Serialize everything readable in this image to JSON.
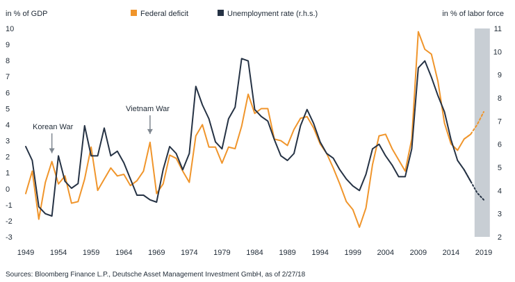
{
  "chart_data": {
    "type": "line",
    "title": "",
    "left_axis_label": "in % of GDP",
    "right_axis_label": "in % of labor force",
    "x_range": [
      1949,
      2019
    ],
    "ylim_left": [
      -3,
      10
    ],
    "ylim_right": [
      2,
      11
    ],
    "left_ticks": [
      "10",
      "9",
      "8",
      "7",
      "6",
      "5",
      "4",
      "3",
      "2",
      "1",
      "0",
      "-1",
      "-2",
      "-3"
    ],
    "right_ticks": [
      "11",
      "10",
      "9",
      "8",
      "7",
      "6",
      "5",
      "4",
      "3",
      "2"
    ],
    "x_ticks": [
      "1949",
      "1954",
      "1959",
      "1964",
      "1969",
      "1974",
      "1979",
      "1984",
      "1989",
      "1994",
      "1999",
      "2004",
      "2009",
      "2014",
      "2019"
    ],
    "forecast_start": 2018,
    "forecast_end": 2019,
    "series": [
      {
        "name": "Federal deficit",
        "axis": "left",
        "color": "#f0952b",
        "forecast_style": "dashed",
        "points": [
          [
            1949,
            -0.3
          ],
          [
            1950,
            1.1
          ],
          [
            1951,
            -1.9
          ],
          [
            1952,
            0.4
          ],
          [
            1953,
            1.7
          ],
          [
            1954,
            0.3
          ],
          [
            1955,
            0.8
          ],
          [
            1956,
            -0.9
          ],
          [
            1957,
            -0.8
          ],
          [
            1958,
            0.6
          ],
          [
            1959,
            2.6
          ],
          [
            1960,
            -0.1
          ],
          [
            1961,
            0.6
          ],
          [
            1962,
            1.3
          ],
          [
            1963,
            0.8
          ],
          [
            1964,
            0.9
          ],
          [
            1965,
            0.2
          ],
          [
            1966,
            0.5
          ],
          [
            1967,
            1.1
          ],
          [
            1968,
            2.9
          ],
          [
            1969,
            -0.3
          ],
          [
            1970,
            0.3
          ],
          [
            1971,
            2.1
          ],
          [
            1972,
            1.9
          ],
          [
            1973,
            1.1
          ],
          [
            1974,
            0.4
          ],
          [
            1975,
            3.3
          ],
          [
            1976,
            4.0
          ],
          [
            1977,
            2.6
          ],
          [
            1978,
            2.6
          ],
          [
            1979,
            1.6
          ],
          [
            1980,
            2.6
          ],
          [
            1981,
            2.5
          ],
          [
            1982,
            3.9
          ],
          [
            1983,
            5.9
          ],
          [
            1984,
            4.7
          ],
          [
            1985,
            5.0
          ],
          [
            1986,
            5.0
          ],
          [
            1987,
            3.1
          ],
          [
            1988,
            3.0
          ],
          [
            1989,
            2.7
          ],
          [
            1990,
            3.7
          ],
          [
            1991,
            4.4
          ],
          [
            1992,
            4.5
          ],
          [
            1993,
            3.8
          ],
          [
            1994,
            2.8
          ],
          [
            1995,
            2.2
          ],
          [
            1996,
            1.3
          ],
          [
            1997,
            0.3
          ],
          [
            1998,
            -0.8
          ],
          [
            1999,
            -1.3
          ],
          [
            2000,
            -2.4
          ],
          [
            2001,
            -1.2
          ],
          [
            2002,
            1.5
          ],
          [
            2003,
            3.3
          ],
          [
            2004,
            3.4
          ],
          [
            2005,
            2.5
          ],
          [
            2006,
            1.8
          ],
          [
            2007,
            1.1
          ],
          [
            2008,
            3.1
          ],
          [
            2009,
            9.8
          ],
          [
            2010,
            8.7
          ],
          [
            2011,
            8.4
          ],
          [
            2012,
            6.7
          ],
          [
            2013,
            4.1
          ],
          [
            2014,
            2.8
          ],
          [
            2015,
            2.4
          ],
          [
            2016,
            3.1
          ],
          [
            2017,
            3.4
          ],
          [
            2018,
            4.0
          ],
          [
            2019,
            4.8
          ]
        ]
      },
      {
        "name": "Unemployment rate (r.h.s.)",
        "axis": "right",
        "color": "#253244",
        "forecast_style": "dotted",
        "points": [
          [
            1949,
            5.9
          ],
          [
            1950,
            5.3
          ],
          [
            1951,
            3.3
          ],
          [
            1952,
            3.0
          ],
          [
            1953,
            2.9
          ],
          [
            1954,
            5.5
          ],
          [
            1955,
            4.4
          ],
          [
            1956,
            4.1
          ],
          [
            1957,
            4.3
          ],
          [
            1958,
            6.8
          ],
          [
            1959,
            5.5
          ],
          [
            1960,
            5.5
          ],
          [
            1961,
            6.7
          ],
          [
            1962,
            5.5
          ],
          [
            1963,
            5.7
          ],
          [
            1964,
            5.2
          ],
          [
            1965,
            4.5
          ],
          [
            1966,
            3.8
          ],
          [
            1967,
            3.8
          ],
          [
            1968,
            3.6
          ],
          [
            1969,
            3.5
          ],
          [
            1970,
            4.9
          ],
          [
            1971,
            5.9
          ],
          [
            1972,
            5.6
          ],
          [
            1973,
            4.9
          ],
          [
            1974,
            5.6
          ],
          [
            1975,
            8.5
          ],
          [
            1976,
            7.7
          ],
          [
            1977,
            7.1
          ],
          [
            1978,
            6.1
          ],
          [
            1979,
            5.8
          ],
          [
            1980,
            7.1
          ],
          [
            1981,
            7.6
          ],
          [
            1982,
            9.7
          ],
          [
            1983,
            9.6
          ],
          [
            1984,
            7.5
          ],
          [
            1985,
            7.2
          ],
          [
            1986,
            7.0
          ],
          [
            1987,
            6.2
          ],
          [
            1988,
            5.5
          ],
          [
            1989,
            5.3
          ],
          [
            1990,
            5.6
          ],
          [
            1991,
            6.8
          ],
          [
            1992,
            7.5
          ],
          [
            1993,
            6.9
          ],
          [
            1994,
            6.1
          ],
          [
            1995,
            5.6
          ],
          [
            1996,
            5.4
          ],
          [
            1997,
            4.9
          ],
          [
            1998,
            4.5
          ],
          [
            1999,
            4.2
          ],
          [
            2000,
            4.0
          ],
          [
            2001,
            4.7
          ],
          [
            2002,
            5.8
          ],
          [
            2003,
            6.0
          ],
          [
            2004,
            5.5
          ],
          [
            2005,
            5.1
          ],
          [
            2006,
            4.6
          ],
          [
            2007,
            4.6
          ],
          [
            2008,
            5.8
          ],
          [
            2009,
            9.3
          ],
          [
            2010,
            9.6
          ],
          [
            2011,
            8.9
          ],
          [
            2012,
            8.1
          ],
          [
            2013,
            7.4
          ],
          [
            2014,
            6.2
          ],
          [
            2015,
            5.3
          ],
          [
            2016,
            4.9
          ],
          [
            2017,
            4.4
          ],
          [
            2018,
            3.9
          ],
          [
            2019,
            3.6
          ]
        ]
      }
    ],
    "annotations": [
      {
        "label": "Korean War",
        "year": 1953
      },
      {
        "label": "Vietnam War",
        "year": 1968
      }
    ]
  },
  "source": "Sources: Bloomberg Finance L.P., Deutsche Asset Management Investment GmbH, as of 2/27/18"
}
